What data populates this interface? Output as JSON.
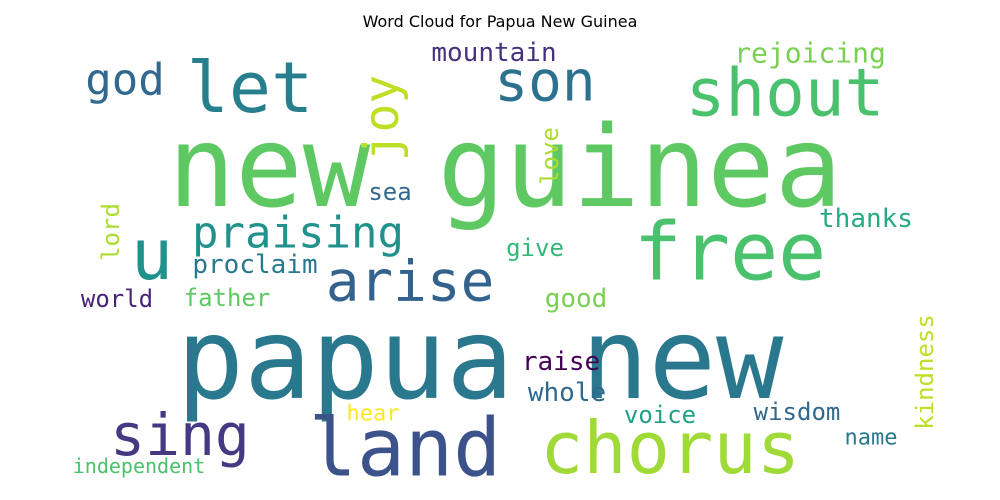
{
  "chart_data": {
    "type": "wordcloud",
    "title": "Word Cloud for Papua New Guinea",
    "words": [
      {
        "text": "papua new",
        "color": "#2a788e"
      },
      {
        "text": "new guinea",
        "color": "#5ec962"
      },
      {
        "text": "land",
        "color": "#3b528b"
      },
      {
        "text": "chorus",
        "color": "#a0da39"
      },
      {
        "text": "free",
        "color": "#4ac16d"
      },
      {
        "text": "shout",
        "color": "#4ac16d"
      },
      {
        "text": "let",
        "color": "#277f8e"
      },
      {
        "text": "son",
        "color": "#2c728e"
      },
      {
        "text": "u",
        "color": "#20928c"
      },
      {
        "text": "joy",
        "color": "#bddf26"
      },
      {
        "text": "arise",
        "color": "#33638d"
      },
      {
        "text": "sing",
        "color": "#443983"
      },
      {
        "text": "praising",
        "color": "#21918c"
      },
      {
        "text": "god",
        "color": "#31688e"
      },
      {
        "text": "rejoicing",
        "color": "#7ad151"
      },
      {
        "text": "mountain",
        "color": "#46327e"
      },
      {
        "text": "sea",
        "color": "#31688e"
      },
      {
        "text": "love",
        "color": "#addc30"
      },
      {
        "text": "thanks",
        "color": "#25ab82"
      },
      {
        "text": "give",
        "color": "#35b779"
      },
      {
        "text": "lord",
        "color": "#addc30"
      },
      {
        "text": "proclaim",
        "color": "#2a788e"
      },
      {
        "text": "world",
        "color": "#482475"
      },
      {
        "text": "father",
        "color": "#5ec962"
      },
      {
        "text": "good",
        "color": "#7ad151"
      },
      {
        "text": "kindness",
        "color": "#bddf26"
      },
      {
        "text": "raise",
        "color": "#440154"
      },
      {
        "text": "whole",
        "color": "#30698e"
      },
      {
        "text": "hear",
        "color": "#fde725"
      },
      {
        "text": "voice",
        "color": "#1fa188"
      },
      {
        "text": "wisdom",
        "color": "#31688e"
      },
      {
        "text": "name",
        "color": "#2a788e"
      },
      {
        "text": "independent",
        "color": "#4ac16d"
      }
    ]
  }
}
